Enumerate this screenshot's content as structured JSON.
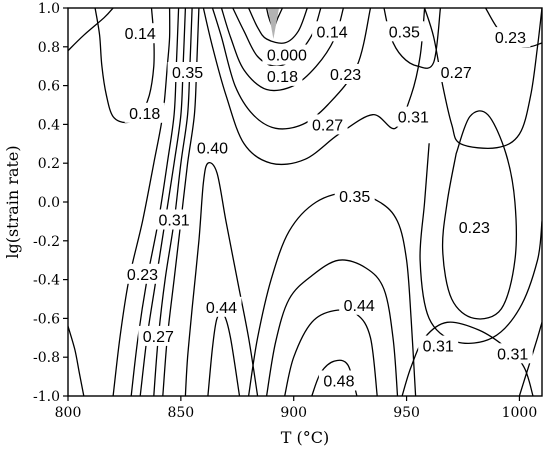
{
  "chart_data": {
    "type": "contour",
    "title": "",
    "xlabel": "T (°C)",
    "ylabel": "lg(strain rate)",
    "xlim": [
      800,
      1010
    ],
    "ylim": [
      -1.0,
      1.0
    ],
    "xticks": [
      "800",
      "850",
      "900",
      "950",
      "1000"
    ],
    "yticks": [
      "1.0",
      "0.8",
      "0.6",
      "0.4",
      "0.2",
      "0.0",
      "-0.2",
      "-0.4",
      "-0.6",
      "-0.8",
      "-1.0"
    ],
    "grid": false,
    "contour_labels": [
      {
        "text": "0.14",
        "x": 832,
        "y": 0.87
      },
      {
        "text": "0.35",
        "x": 853,
        "y": 0.67
      },
      {
        "text": "0.18",
        "x": 834,
        "y": 0.46
      },
      {
        "text": "0.40",
        "x": 864,
        "y": 0.28
      },
      {
        "text": "0.31",
        "x": 847,
        "y": -0.09
      },
      {
        "text": "0.23",
        "x": 833,
        "y": -0.37
      },
      {
        "text": "0.27",
        "x": 840,
        "y": -0.69
      },
      {
        "text": "0.44",
        "x": 868,
        "y": -0.54
      },
      {
        "text": "0.000",
        "x": 897,
        "y": 0.76
      },
      {
        "text": "0.18",
        "x": 895,
        "y": 0.65
      },
      {
        "text": "0.14",
        "x": 917,
        "y": 0.88
      },
      {
        "text": "0.23",
        "x": 923,
        "y": 0.66
      },
      {
        "text": "0.27",
        "x": 915,
        "y": 0.4
      },
      {
        "text": "0.35",
        "x": 927,
        "y": 0.03
      },
      {
        "text": "0.44",
        "x": 929,
        "y": -0.53
      },
      {
        "text": "0.48",
        "x": 920,
        "y": -0.92
      },
      {
        "text": "0.35",
        "x": 949,
        "y": 0.88
      },
      {
        "text": "0.31",
        "x": 953,
        "y": 0.44
      },
      {
        "text": "0.27",
        "x": 972,
        "y": 0.67
      },
      {
        "text": "0.23",
        "x": 980,
        "y": -0.13
      },
      {
        "text": "0.23",
        "x": 996,
        "y": 0.85
      },
      {
        "text": "0.31",
        "x": 964,
        "y": -0.74
      },
      {
        "text": "0.31",
        "x": 997,
        "y": -0.78
      }
    ],
    "contours": [
      {
        "level": "0.14",
        "points": [
          [
            800,
            0.78
          ],
          [
            807,
            0.86
          ],
          [
            816,
            0.95
          ],
          [
            820,
            1.0
          ]
        ]
      },
      {
        "level": "0.14",
        "points": [
          [
            812,
            1.0
          ],
          [
            814,
            0.86
          ],
          [
            815,
            0.7
          ],
          [
            817,
            0.55
          ],
          [
            820,
            0.44
          ],
          [
            826,
            0.41
          ],
          [
            832,
            0.45
          ],
          [
            836,
            0.55
          ],
          [
            838,
            0.7
          ],
          [
            838,
            0.85
          ],
          [
            837,
            1.0
          ]
        ]
      },
      {
        "level": "0.18",
        "points": [
          [
            800,
            -0.64
          ],
          [
            803,
            -0.76
          ],
          [
            805,
            -0.88
          ],
          [
            807,
            -1.0
          ]
        ]
      },
      {
        "level": "0.18",
        "points": [
          [
            820,
            -1.0
          ],
          [
            823,
            -0.7
          ],
          [
            827,
            -0.4
          ],
          [
            833,
            -0.1
          ],
          [
            838,
            0.2
          ],
          [
            842,
            0.45
          ],
          [
            844,
            0.7
          ],
          [
            845,
            0.85
          ],
          [
            845,
            1.0
          ]
        ]
      },
      {
        "level": "0.23",
        "points": [
          [
            828,
            -1.0
          ],
          [
            831,
            -0.7
          ],
          [
            835,
            -0.4
          ],
          [
            840,
            -0.1
          ],
          [
            844,
            0.2
          ],
          [
            847,
            0.45
          ],
          [
            848,
            0.7
          ],
          [
            849,
            1.0
          ]
        ]
      },
      {
        "level": "0.27",
        "points": [
          [
            832,
            -1.0
          ],
          [
            835,
            -0.7
          ],
          [
            839,
            -0.4
          ],
          [
            843,
            -0.1
          ],
          [
            847,
            0.2
          ],
          [
            850,
            0.45
          ],
          [
            851,
            0.7
          ],
          [
            852,
            1.0
          ]
        ]
      },
      {
        "level": "0.31",
        "points": [
          [
            838,
            -1.0
          ],
          [
            840,
            -0.7
          ],
          [
            843,
            -0.4
          ],
          [
            847,
            -0.1
          ],
          [
            850,
            0.2
          ],
          [
            853,
            0.45
          ],
          [
            854,
            0.7
          ],
          [
            855,
            1.0
          ]
        ]
      },
      {
        "level": "0.35",
        "points": [
          [
            842,
            -1.0
          ],
          [
            844,
            -0.7
          ],
          [
            847,
            -0.4
          ],
          [
            850,
            -0.1
          ],
          [
            853,
            0.2
          ],
          [
            856,
            0.45
          ],
          [
            857,
            0.7
          ],
          [
            858,
            1.0
          ]
        ]
      },
      {
        "level": "0.40",
        "points": [
          [
            852,
            -1.0
          ],
          [
            853,
            -0.8
          ],
          [
            855,
            -0.55
          ],
          [
            858,
            -0.2
          ],
          [
            860,
            0.1
          ],
          [
            862,
            0.2
          ],
          [
            866,
            0.15
          ],
          [
            870,
            -0.1
          ],
          [
            875,
            -0.4
          ],
          [
            880,
            -0.7
          ],
          [
            884,
            -1.0
          ]
        ]
      },
      {
        "level": "0.44",
        "points": [
          [
            862,
            -1.0
          ],
          [
            864,
            -0.75
          ],
          [
            866,
            -0.6
          ],
          [
            869,
            -0.58
          ],
          [
            872,
            -0.7
          ],
          [
            876,
            -1.0
          ]
        ]
      },
      {
        "level": "0.000",
        "points": [
          [
            888,
            1.0
          ],
          [
            889,
            0.95
          ],
          [
            891,
            0.9
          ],
          [
            893,
            0.95
          ],
          [
            895,
            1.0
          ]
        ]
      },
      {
        "level": "0.14",
        "points": [
          [
            880,
            1.0
          ],
          [
            884,
            0.9
          ],
          [
            888,
            0.84
          ],
          [
            896,
            0.82
          ],
          [
            902,
            0.88
          ],
          [
            906,
            1.0
          ]
        ]
      },
      {
        "level": "0.18",
        "points": [
          [
            873,
            1.0
          ],
          [
            878,
            0.88
          ],
          [
            884,
            0.75
          ],
          [
            892,
            0.7
          ],
          [
            900,
            0.74
          ],
          [
            908,
            0.86
          ],
          [
            912,
            1.0
          ]
        ]
      },
      {
        "level": "0.23",
        "points": [
          [
            868,
            1.0
          ],
          [
            872,
            0.85
          ],
          [
            878,
            0.68
          ],
          [
            888,
            0.58
          ],
          [
            900,
            0.6
          ],
          [
            910,
            0.7
          ],
          [
            918,
            0.84
          ],
          [
            922,
            1.0
          ]
        ]
      },
      {
        "level": "0.27",
        "points": [
          [
            864,
            1.0
          ],
          [
            868,
            0.85
          ],
          [
            874,
            0.6
          ],
          [
            882,
            0.45
          ],
          [
            892,
            0.38
          ],
          [
            904,
            0.4
          ],
          [
            915,
            0.5
          ],
          [
            928,
            0.7
          ],
          [
            934,
            1.0
          ]
        ]
      },
      {
        "level": "0.31",
        "points": [
          [
            860,
            1.0
          ],
          [
            864,
            0.8
          ],
          [
            870,
            0.55
          ],
          [
            878,
            0.3
          ],
          [
            890,
            0.2
          ],
          [
            905,
            0.22
          ],
          [
            920,
            0.35
          ],
          [
            935,
            0.45
          ],
          [
            945,
            0.38
          ],
          [
            952,
            0.55
          ],
          [
            956,
            0.75
          ],
          [
            958,
            1.0
          ]
        ]
      },
      {
        "level": "0.35",
        "points": [
          [
            940,
            1.0
          ],
          [
            943,
            0.85
          ],
          [
            948,
            0.75
          ],
          [
            955,
            0.7
          ],
          [
            962,
            0.72
          ],
          [
            965,
            1.0
          ]
        ]
      },
      {
        "level": "0.35",
        "points": [
          [
            880,
            -1.0
          ],
          [
            884,
            -0.7
          ],
          [
            890,
            -0.4
          ],
          [
            898,
            -0.15
          ],
          [
            910,
            0.0
          ],
          [
            925,
            0.05
          ],
          [
            938,
            0.0
          ],
          [
            946,
            -0.1
          ],
          [
            950,
            -0.3
          ],
          [
            952,
            -0.6
          ],
          [
            954,
            -1.0
          ]
        ]
      },
      {
        "level": "0.40",
        "points": [
          [
            888,
            -1.0
          ],
          [
            892,
            -0.72
          ],
          [
            898,
            -0.5
          ],
          [
            908,
            -0.38
          ],
          [
            920,
            -0.3
          ],
          [
            932,
            -0.34
          ],
          [
            940,
            -0.45
          ],
          [
            944,
            -0.7
          ],
          [
            946,
            -1.0
          ]
        ]
      },
      {
        "level": "0.44",
        "points": [
          [
            896,
            -1.0
          ],
          [
            900,
            -0.8
          ],
          [
            908,
            -0.62
          ],
          [
            918,
            -0.56
          ],
          [
            928,
            -0.58
          ],
          [
            934,
            -0.7
          ],
          [
            937,
            -1.0
          ]
        ]
      },
      {
        "level": "0.48",
        "points": [
          [
            908,
            -1.0
          ],
          [
            912,
            -0.88
          ],
          [
            918,
            -0.82
          ],
          [
            924,
            -0.84
          ],
          [
            928,
            -1.0
          ]
        ]
      },
      {
        "level": "0.27",
        "points": [
          [
            958,
            1.0
          ],
          [
            962,
            0.85
          ],
          [
            966,
            0.6
          ],
          [
            970,
            0.4
          ],
          [
            974,
            0.3
          ],
          [
            990,
            0.28
          ],
          [
            1000,
            0.35
          ],
          [
            1005,
            0.55
          ],
          [
            1008,
            0.8
          ],
          [
            1010,
            1.0
          ]
        ]
      },
      {
        "level": "0.23",
        "points": [
          [
            985,
            1.0
          ],
          [
            990,
            0.9
          ],
          [
            996,
            0.82
          ],
          [
            1004,
            0.8
          ],
          [
            1010,
            0.82
          ]
        ]
      },
      {
        "level": "0.23",
        "points": [
          [
            972,
            0.25
          ],
          [
            968,
            0.0
          ],
          [
            966,
            -0.25
          ],
          [
            970,
            -0.5
          ],
          [
            980,
            -0.6
          ],
          [
            992,
            -0.55
          ],
          [
            998,
            -0.3
          ],
          [
            998,
            0.0
          ],
          [
            994,
            0.25
          ],
          [
            986,
            0.45
          ],
          [
            978,
            0.44
          ],
          [
            972,
            0.25
          ]
        ]
      },
      {
        "level": "0.27",
        "points": [
          [
            960,
            0.3
          ],
          [
            958,
            0.0
          ],
          [
            956,
            -0.3
          ],
          [
            960,
            -0.6
          ],
          [
            972,
            -0.72
          ],
          [
            988,
            -0.7
          ],
          [
            1000,
            -0.55
          ],
          [
            1008,
            -0.3
          ],
          [
            1010,
            -0.1
          ]
        ]
      },
      {
        "level": "0.31",
        "points": [
          [
            948,
            -1.0
          ],
          [
            952,
            -0.85
          ],
          [
            958,
            -0.7
          ],
          [
            968,
            -0.62
          ],
          [
            982,
            -0.66
          ],
          [
            994,
            -0.75
          ],
          [
            1002,
            -0.85
          ],
          [
            1006,
            -1.0
          ]
        ]
      },
      {
        "level": "0.35",
        "points": [
          [
            1000,
            -1.0
          ],
          [
            1004,
            -0.85
          ],
          [
            1008,
            -0.7
          ],
          [
            1010,
            -0.62
          ]
        ]
      }
    ]
  }
}
